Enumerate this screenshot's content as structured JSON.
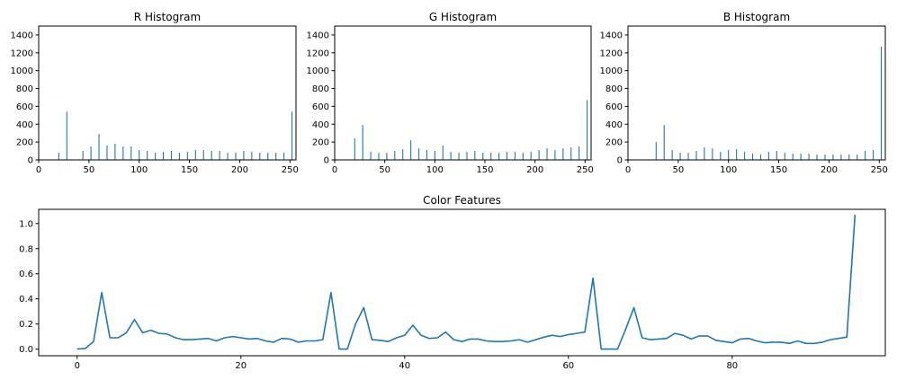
{
  "colors": {
    "series": "#1f77b4",
    "axis": "#000000",
    "background": "#ffffff"
  },
  "chart_data": [
    {
      "type": "bar",
      "title": "R Histogram",
      "xlim": [
        0,
        256
      ],
      "ylim": [
        0,
        1500
      ],
      "xticks": [
        0,
        50,
        100,
        150,
        200,
        250
      ],
      "yticks": [
        0,
        200,
        400,
        600,
        800,
        1000,
        1200,
        1400
      ],
      "x": [
        20,
        28,
        44,
        52,
        60,
        68,
        76,
        84,
        92,
        100,
        108,
        116,
        124,
        132,
        140,
        148,
        156,
        164,
        172,
        180,
        188,
        196,
        204,
        212,
        220,
        228,
        236,
        244,
        252
      ],
      "values": [
        80,
        540,
        100,
        150,
        290,
        160,
        180,
        150,
        150,
        110,
        100,
        80,
        90,
        100,
        80,
        90,
        110,
        110,
        100,
        100,
        80,
        80,
        100,
        90,
        80,
        80,
        80,
        80,
        540
      ]
    },
    {
      "type": "bar",
      "title": "G Histogram",
      "xlim": [
        0,
        256
      ],
      "ylim": [
        0,
        1500
      ],
      "xticks": [
        0,
        50,
        100,
        150,
        200,
        250
      ],
      "yticks": [
        0,
        200,
        400,
        600,
        800,
        1000,
        1200,
        1400
      ],
      "x": [
        20,
        28,
        36,
        44,
        52,
        60,
        68,
        76,
        84,
        92,
        100,
        108,
        116,
        124,
        132,
        140,
        148,
        156,
        164,
        172,
        180,
        188,
        196,
        204,
        212,
        220,
        228,
        236,
        244,
        252
      ],
      "values": [
        240,
        390,
        90,
        80,
        80,
        100,
        120,
        220,
        130,
        110,
        100,
        160,
        90,
        80,
        90,
        100,
        80,
        80,
        80,
        90,
        90,
        80,
        90,
        110,
        130,
        110,
        130,
        140,
        150,
        670
      ]
    },
    {
      "type": "bar",
      "title": "B Histogram",
      "xlim": [
        0,
        256
      ],
      "ylim": [
        0,
        1500
      ],
      "xticks": [
        0,
        50,
        100,
        150,
        200,
        250
      ],
      "yticks": [
        0,
        200,
        400,
        600,
        800,
        1000,
        1200,
        1400
      ],
      "x": [
        28,
        36,
        44,
        52,
        60,
        68,
        76,
        84,
        92,
        100,
        108,
        116,
        124,
        132,
        140,
        148,
        156,
        164,
        172,
        180,
        188,
        196,
        204,
        212,
        220,
        228,
        236,
        244,
        252
      ],
      "values": [
        200,
        390,
        110,
        80,
        80,
        100,
        140,
        130,
        90,
        110,
        120,
        90,
        70,
        60,
        90,
        100,
        80,
        70,
        70,
        70,
        60,
        60,
        60,
        60,
        60,
        60,
        100,
        110,
        1270
      ]
    },
    {
      "type": "line",
      "title": "Color Features",
      "xlim": [
        -4.7,
        98.7
      ],
      "ylim": [
        -0.053,
        1.113
      ],
      "xticks": [
        0,
        20,
        40,
        60,
        80
      ],
      "yticks": [
        0.0,
        0.2,
        0.4,
        0.6,
        0.8,
        1.0
      ],
      "x": [
        0,
        1,
        2,
        3,
        4,
        5,
        6,
        7,
        8,
        9,
        10,
        11,
        12,
        13,
        14,
        15,
        16,
        17,
        18,
        19,
        20,
        21,
        22,
        23,
        24,
        25,
        26,
        27,
        28,
        29,
        30,
        31,
        32,
        33,
        34,
        35,
        36,
        37,
        38,
        39,
        40,
        41,
        42,
        43,
        44,
        45,
        46,
        47,
        48,
        49,
        50,
        51,
        52,
        53,
        54,
        55,
        56,
        57,
        58,
        59,
        60,
        61,
        62,
        63,
        64,
        65,
        66,
        67,
        68,
        69,
        70,
        71,
        72,
        73,
        74,
        75,
        76,
        77,
        78,
        79,
        80,
        81,
        82,
        83,
        84,
        85,
        86,
        87,
        88,
        89,
        90,
        91,
        92,
        93,
        94,
        95
      ],
      "values": [
        0.0,
        0.005,
        0.06,
        0.45,
        0.09,
        0.09,
        0.13,
        0.235,
        0.13,
        0.15,
        0.125,
        0.12,
        0.09,
        0.075,
        0.075,
        0.08,
        0.085,
        0.065,
        0.09,
        0.1,
        0.09,
        0.08,
        0.085,
        0.065,
        0.055,
        0.085,
        0.08,
        0.055,
        0.065,
        0.065,
        0.075,
        0.45,
        0.0,
        0.0,
        0.2,
        0.33,
        0.075,
        0.07,
        0.06,
        0.09,
        0.11,
        0.19,
        0.11,
        0.085,
        0.09,
        0.135,
        0.075,
        0.06,
        0.08,
        0.08,
        0.065,
        0.06,
        0.06,
        0.065,
        0.075,
        0.055,
        0.075,
        0.095,
        0.11,
        0.1,
        0.115,
        0.125,
        0.135,
        0.565,
        0.0,
        0.0,
        0.0,
        0.16,
        0.33,
        0.09,
        0.075,
        0.08,
        0.085,
        0.125,
        0.11,
        0.08,
        0.105,
        0.105,
        0.07,
        0.06,
        0.05,
        0.08,
        0.085,
        0.065,
        0.05,
        0.055,
        0.055,
        0.045,
        0.065,
        0.045,
        0.045,
        0.055,
        0.075,
        0.085,
        0.095,
        1.07
      ]
    }
  ]
}
